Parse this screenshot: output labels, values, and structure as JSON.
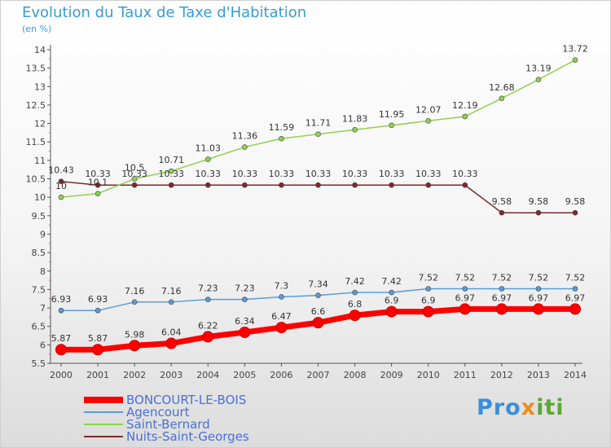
{
  "title": "Evolution du Taux de Taxe d'Habitation",
  "subtitle": "(en %)",
  "logo_text": "Proxiti",
  "chart_data": {
    "type": "line",
    "x": [
      "2000",
      "2001",
      "2002",
      "2003",
      "2004",
      "2005",
      "2006",
      "2007",
      "2008",
      "2009",
      "2010",
      "2011",
      "2012",
      "2013",
      "2014"
    ],
    "ylim": [
      5.5,
      14
    ],
    "y_ticks": [
      "5.5",
      "6",
      "6.5",
      "7",
      "7.5",
      "8",
      "8.5",
      "9",
      "9.5",
      "10",
      "10.5",
      "11",
      "11.5",
      "12",
      "12.5",
      "13",
      "13.5",
      "14"
    ],
    "grid": false,
    "legend_position": "bottom-left",
    "series": [
      {
        "name": "BONCOURT-LE-BOIS",
        "color": "#ff0000",
        "values": [
          5.87,
          5.87,
          5.98,
          6.04,
          6.22,
          6.34,
          6.47,
          6.6,
          6.8,
          6.9,
          6.9,
          6.97,
          6.97,
          6.97,
          6.97
        ],
        "labels": [
          "5.87",
          "5.87",
          "5.98",
          "6.04",
          "6.22",
          "6.34",
          "6.47",
          "6.6",
          "6.8",
          "6.9",
          "6.9",
          "6.97",
          "6.97",
          "6.97",
          "6.97"
        ]
      },
      {
        "name": "Agencourt",
        "color": "#5b9bd5",
        "values": [
          6.93,
          6.93,
          7.16,
          7.16,
          7.23,
          7.23,
          7.3,
          7.34,
          7.42,
          7.42,
          7.52,
          7.52,
          7.52,
          7.52,
          7.52
        ],
        "labels": [
          "6.93",
          "6.93",
          "7.16",
          "7.16",
          "7.23",
          "7.23",
          "7.3",
          "7.34",
          "7.42",
          "7.42",
          "7.52",
          "7.52",
          "7.52",
          "7.52",
          "7.52"
        ]
      },
      {
        "name": "Saint-Bernard",
        "color": "#90d050",
        "values": [
          10,
          10.1,
          10.5,
          10.71,
          11.03,
          11.36,
          11.59,
          11.71,
          11.83,
          11.95,
          12.07,
          12.19,
          12.68,
          13.19,
          13.72
        ],
        "labels": [
          "10",
          "10.1",
          "10.5",
          "10.71",
          "11.03",
          "11.36",
          "11.59",
          "11.71",
          "11.83",
          "11.95",
          "12.07",
          "12.19",
          "12.68",
          "13.19",
          "13.72"
        ]
      },
      {
        "name": "Nuits-Saint-Georges",
        "color": "#7b2a2a",
        "values": [
          10.43,
          10.33,
          10.33,
          10.33,
          10.33,
          10.33,
          10.33,
          10.33,
          10.33,
          10.33,
          10.33,
          10.33,
          9.58,
          9.58,
          9.58
        ],
        "labels": [
          "10.43",
          "10.33",
          "10.33",
          "10.33",
          "10.33",
          "10.33",
          "10.33",
          "10.33",
          "10.33",
          "10.33",
          "10.33",
          "10.33",
          "9.58",
          "9.58",
          "9.58"
        ]
      }
    ]
  }
}
